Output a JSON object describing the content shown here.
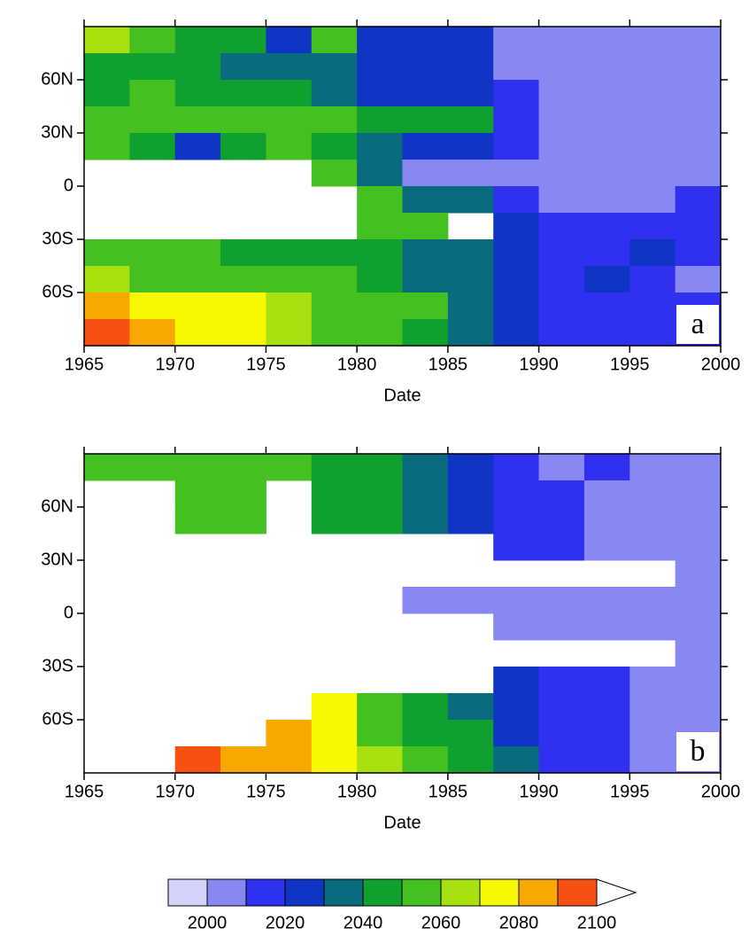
{
  "chart_data": [
    {
      "type": "contour",
      "panel_label": "a",
      "xlabel": "Date",
      "x": [
        1966.25,
        1968.75,
        1971.25,
        1973.75,
        1976.25,
        1978.75,
        1981.25,
        1983.75,
        1986.25,
        1988.75,
        1991.25,
        1993.75,
        1996.25,
        1998.75
      ],
      "y": [
        82.5,
        67.5,
        52.5,
        37.5,
        22.5,
        7.5,
        -7.5,
        -22.5,
        -37.5,
        -52.5,
        -67.5,
        -82.5
      ],
      "z": [
        [
          2065,
          2055,
          2045,
          2045,
          2025,
          2055,
          2025,
          2025,
          2025,
          2005,
          2005,
          2005,
          2005,
          2005
        ],
        [
          2045,
          2045,
          2045,
          2035,
          2035,
          2035,
          2025,
          2025,
          2025,
          2005,
          2005,
          2005,
          2005,
          2005
        ],
        [
          2045,
          2055,
          2045,
          2045,
          2045,
          2035,
          2025,
          2025,
          2025,
          2015,
          2005,
          2005,
          2005,
          2005
        ],
        [
          2055,
          2055,
          2055,
          2055,
          2055,
          2055,
          2045,
          2045,
          2045,
          2015,
          2005,
          2005,
          2005,
          2005
        ],
        [
          2055,
          2045,
          2025,
          2045,
          2055,
          2045,
          2035,
          2025,
          2025,
          2015,
          2005,
          2005,
          2005,
          2005
        ],
        [
          null,
          null,
          null,
          null,
          null,
          2055,
          2035,
          2005,
          2005,
          2005,
          2005,
          2005,
          2005,
          2005
        ],
        [
          null,
          null,
          null,
          null,
          null,
          null,
          2055,
          2035,
          2035,
          2015,
          2005,
          2005,
          2005,
          2015
        ],
        [
          null,
          null,
          null,
          null,
          null,
          null,
          2055,
          2055,
          null,
          2025,
          2015,
          2015,
          2015,
          2015
        ],
        [
          2055,
          2055,
          2055,
          2045,
          2045,
          2045,
          2045,
          2035,
          2035,
          2025,
          2015,
          2015,
          2025,
          2015
        ],
        [
          2065,
          2055,
          2055,
          2055,
          2055,
          2055,
          2045,
          2035,
          2035,
          2025,
          2015,
          2025,
          2015,
          2005
        ],
        [
          2085,
          2075,
          2075,
          2075,
          2065,
          2055,
          2055,
          2055,
          2035,
          2025,
          2015,
          2015,
          2015,
          2015
        ],
        [
          2095,
          2085,
          2075,
          2075,
          2065,
          2055,
          2055,
          2045,
          2035,
          2025,
          2015,
          2015,
          2015,
          2015
        ]
      ],
      "xlim": [
        1965,
        2000
      ],
      "ylim": [
        -90,
        90
      ],
      "xticks": [
        1965,
        1970,
        1975,
        1980,
        1985,
        1990,
        1995,
        2000
      ],
      "yticks": [
        {
          "value": 60,
          "label": "60N"
        },
        {
          "value": 30,
          "label": "30N"
        },
        0,
        {
          "value": -30,
          "label": "30S"
        },
        {
          "value": -60,
          "label": "60S"
        }
      ]
    },
    {
      "type": "contour",
      "panel_label": "b",
      "xlabel": "Date",
      "x": [
        1966.25,
        1968.75,
        1971.25,
        1973.75,
        1976.25,
        1978.75,
        1981.25,
        1983.75,
        1986.25,
        1988.75,
        1991.25,
        1993.75,
        1996.25,
        1998.75
      ],
      "y": [
        82.5,
        67.5,
        52.5,
        37.5,
        22.5,
        7.5,
        -7.5,
        -22.5,
        -37.5,
        -52.5,
        -67.5,
        -82.5
      ],
      "z": [
        [
          2055,
          2055,
          2055,
          2055,
          2055,
          2045,
          2045,
          2035,
          2025,
          2015,
          2005,
          2015,
          2005,
          2005
        ],
        [
          null,
          null,
          2055,
          2055,
          null,
          2045,
          2045,
          2035,
          2025,
          2015,
          2015,
          2005,
          2005,
          2005
        ],
        [
          null,
          null,
          2055,
          2055,
          null,
          2045,
          2045,
          2035,
          2025,
          2015,
          2015,
          2005,
          2005,
          2005
        ],
        [
          null,
          null,
          null,
          null,
          null,
          null,
          null,
          null,
          null,
          2015,
          2015,
          2005,
          2005,
          2005
        ],
        [
          null,
          null,
          null,
          null,
          null,
          null,
          null,
          null,
          null,
          null,
          null,
          null,
          null,
          2005
        ],
        [
          null,
          null,
          null,
          null,
          null,
          null,
          null,
          2005,
          2005,
          2005,
          2005,
          2005,
          2005,
          2005
        ],
        [
          null,
          null,
          null,
          null,
          null,
          null,
          null,
          null,
          null,
          2005,
          2005,
          2005,
          2005,
          2005
        ],
        [
          null,
          null,
          null,
          null,
          null,
          null,
          null,
          null,
          null,
          null,
          null,
          null,
          null,
          2005
        ],
        [
          null,
          null,
          null,
          null,
          null,
          null,
          null,
          null,
          null,
          2025,
          2015,
          2015,
          2005,
          2005
        ],
        [
          null,
          null,
          null,
          null,
          null,
          2075,
          2055,
          2045,
          2035,
          2025,
          2015,
          2015,
          2005,
          2005
        ],
        [
          null,
          null,
          null,
          null,
          2085,
          2075,
          2055,
          2045,
          2045,
          2025,
          2015,
          2015,
          2005,
          2005
        ],
        [
          null,
          null,
          2095,
          2085,
          2085,
          2075,
          2065,
          2055,
          2045,
          2035,
          2015,
          2015,
          2005,
          2005
        ]
      ],
      "xlim": [
        1965,
        2000
      ],
      "ylim": [
        -90,
        90
      ],
      "xticks": [
        1965,
        1970,
        1975,
        1980,
        1985,
        1990,
        1995,
        2000
      ],
      "yticks": [
        {
          "value": 60,
          "label": "60N"
        },
        {
          "value": 30,
          "label": "30N"
        },
        0,
        {
          "value": -30,
          "label": "30S"
        },
        {
          "value": -60,
          "label": "60S"
        }
      ]
    }
  ],
  "colorbar": {
    "levels": [
      2000,
      2010,
      2020,
      2030,
      2040,
      2050,
      2060,
      2070,
      2080,
      2090,
      2100
    ],
    "colors": [
      "#d2d2fa",
      "#8888f2",
      "#3030f0",
      "#1034c4",
      "#0a6a7e",
      "#10a030",
      "#44c020",
      "#a8e010",
      "#f8f800",
      "#f8a800",
      "#f85010",
      "#ffffff"
    ],
    "ticks": [
      2000,
      2020,
      2040,
      2060,
      2080,
      2100
    ]
  }
}
